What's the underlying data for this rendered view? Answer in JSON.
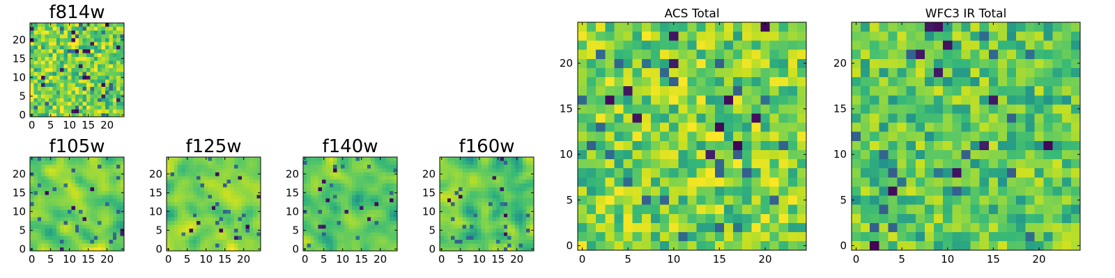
{
  "chart_data": [
    {
      "type": "heatmap",
      "title": "f814w",
      "grid_size": 25,
      "x_ticks": [
        "0",
        "5",
        "10",
        "15",
        "20"
      ],
      "y_ticks": [
        "0",
        "5",
        "10",
        "15",
        "20"
      ],
      "xlim": [
        -0.5,
        24.5
      ],
      "ylim": [
        -0.5,
        24.5
      ],
      "colormap": "viridis",
      "seed": 814,
      "smooth": false,
      "palette": "bright"
    },
    {
      "type": "heatmap",
      "title": "f105w",
      "grid_size": 25,
      "x_ticks": [
        "0",
        "5",
        "10",
        "15",
        "20"
      ],
      "y_ticks": [
        "0",
        "5",
        "10",
        "15",
        "20"
      ],
      "xlim": [
        -0.5,
        24.5
      ],
      "ylim": [
        -0.5,
        24.5
      ],
      "colormap": "viridis",
      "seed": 105,
      "smooth": true,
      "palette": "bright"
    },
    {
      "type": "heatmap",
      "title": "f125w",
      "grid_size": 25,
      "x_ticks": [
        "0",
        "5",
        "10",
        "15",
        "20"
      ],
      "y_ticks": [
        "0",
        "5",
        "10",
        "15",
        "20"
      ],
      "xlim": [
        -0.5,
        24.5
      ],
      "ylim": [
        -0.5,
        24.5
      ],
      "colormap": "viridis",
      "seed": 125,
      "smooth": true,
      "palette": "bright"
    },
    {
      "type": "heatmap",
      "title": "f140w",
      "grid_size": 25,
      "x_ticks": [
        "0",
        "5",
        "10",
        "15",
        "20"
      ],
      "y_ticks": [
        "0",
        "5",
        "10",
        "15",
        "20"
      ],
      "xlim": [
        -0.5,
        24.5
      ],
      "ylim": [
        -0.5,
        24.5
      ],
      "colormap": "viridis",
      "seed": 140,
      "smooth": true,
      "palette": "mid"
    },
    {
      "type": "heatmap",
      "title": "f160w",
      "grid_size": 25,
      "x_ticks": [
        "0",
        "5",
        "10",
        "15",
        "20"
      ],
      "y_ticks": [
        "0",
        "5",
        "10",
        "15",
        "20"
      ],
      "xlim": [
        -0.5,
        24.5
      ],
      "ylim": [
        -0.5,
        24.5
      ],
      "colormap": "viridis",
      "seed": 160,
      "smooth": true,
      "palette": "mid"
    },
    {
      "type": "heatmap",
      "title": "ACS Total",
      "grid_size": 25,
      "x_ticks": [
        "0",
        "5",
        "10",
        "15",
        "20"
      ],
      "y_ticks": [
        "0",
        "5",
        "10",
        "15",
        "20"
      ],
      "xlim": [
        -0.5,
        24.5
      ],
      "ylim": [
        -0.5,
        24.5
      ],
      "colormap": "viridis",
      "seed": 7001,
      "smooth": false,
      "palette": "bright"
    },
    {
      "type": "heatmap",
      "title": "WFC3 IR Total",
      "grid_size": 25,
      "x_ticks": [
        "0",
        "5",
        "10",
        "15",
        "20"
      ],
      "y_ticks": [
        "0",
        "5",
        "10",
        "15",
        "20"
      ],
      "xlim": [
        -0.5,
        24.5
      ],
      "ylim": [
        -0.5,
        24.5
      ],
      "colormap": "viridis",
      "seed": 7002,
      "smooth": false,
      "palette": "mid"
    }
  ],
  "colormap_colors": {
    "dark": "#440154",
    "navy": "#3b528b",
    "blue": "#31688e",
    "teal": "#21918c",
    "seagreen": "#35b779",
    "green": "#5ec962",
    "lime": "#90d743",
    "yellowgreen": "#c8e020",
    "yellow": "#fde725"
  }
}
